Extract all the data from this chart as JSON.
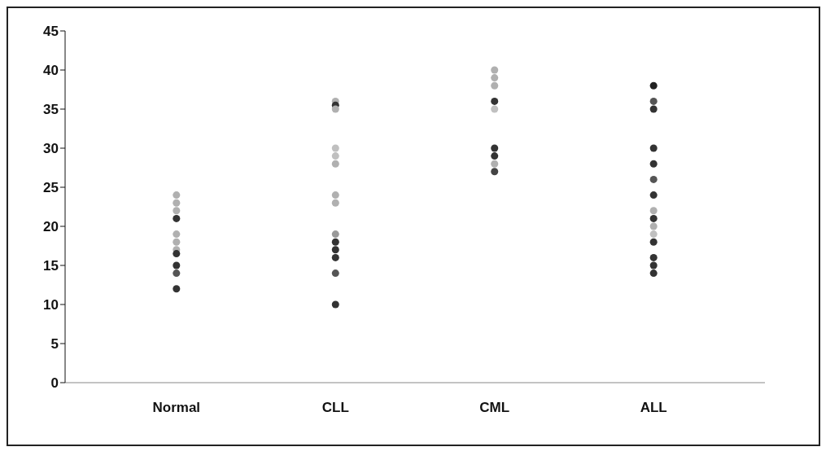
{
  "chart_data": {
    "type": "scatter",
    "categories": [
      "Normal",
      "CLL",
      "CML",
      "ALL"
    ],
    "ylim": [
      0,
      45
    ],
    "yticks": [
      0,
      5,
      10,
      15,
      20,
      25,
      30,
      35,
      40,
      45
    ],
    "grid": false,
    "series": [
      {
        "x": [
          "Normal",
          "Normal",
          "Normal",
          "Normal",
          "Normal",
          "Normal",
          "Normal",
          "Normal",
          "Normal",
          "Normal",
          "Normal"
        ],
        "values": [
          24,
          23,
          22,
          19,
          18,
          17,
          21,
          16.5,
          15,
          14,
          12
        ],
        "colors": [
          "#b0b0b0",
          "#b0b0b0",
          "#b0b0b0",
          "#b0b0b0",
          "#b0b0b0",
          "#b0b0b0",
          "#333333",
          "#333333",
          "#333333",
          "#555555",
          "#333333"
        ]
      },
      {
        "x": [
          "CLL",
          "CLL",
          "CLL",
          "CLL",
          "CLL",
          "CLL",
          "CLL",
          "CLL",
          "CLL",
          "CLL",
          "CLL",
          "CLL",
          "CLL",
          "CLL"
        ],
        "values": [
          36,
          35.5,
          35,
          30,
          29,
          28,
          24,
          23,
          19,
          18,
          17,
          16,
          14,
          10
        ],
        "colors": [
          "#b0b0b0",
          "#333333",
          "#b0b0b0",
          "#c0c0c0",
          "#c0c0c0",
          "#b0b0b0",
          "#b0b0b0",
          "#b0b0b0",
          "#999999",
          "#333333",
          "#333333",
          "#333333",
          "#555555",
          "#333333"
        ]
      },
      {
        "x": [
          "CML",
          "CML",
          "CML",
          "CML",
          "CML",
          "CML",
          "CML",
          "CML",
          "CML"
        ],
        "values": [
          40,
          39,
          38,
          36,
          35,
          30,
          29,
          28,
          27
        ],
        "colors": [
          "#b0b0b0",
          "#b0b0b0",
          "#b0b0b0",
          "#333333",
          "#c0c0c0",
          "#333333",
          "#333333",
          "#b0b0b0",
          "#444444"
        ]
      },
      {
        "x": [
          "ALL",
          "ALL",
          "ALL",
          "ALL",
          "ALL",
          "ALL",
          "ALL",
          "ALL",
          "ALL",
          "ALL",
          "ALL",
          "ALL",
          "ALL",
          "ALL",
          "ALL"
        ],
        "values": [
          38,
          36,
          35,
          30,
          28,
          26,
          24,
          22,
          21,
          20,
          19,
          18,
          16,
          15,
          14
        ],
        "colors": [
          "#222222",
          "#555555",
          "#333333",
          "#333333",
          "#333333",
          "#555555",
          "#333333",
          "#b0b0b0",
          "#333333",
          "#b0b0b0",
          "#c0c0c0",
          "#333333",
          "#333333",
          "#333333",
          "#333333"
        ]
      }
    ]
  }
}
